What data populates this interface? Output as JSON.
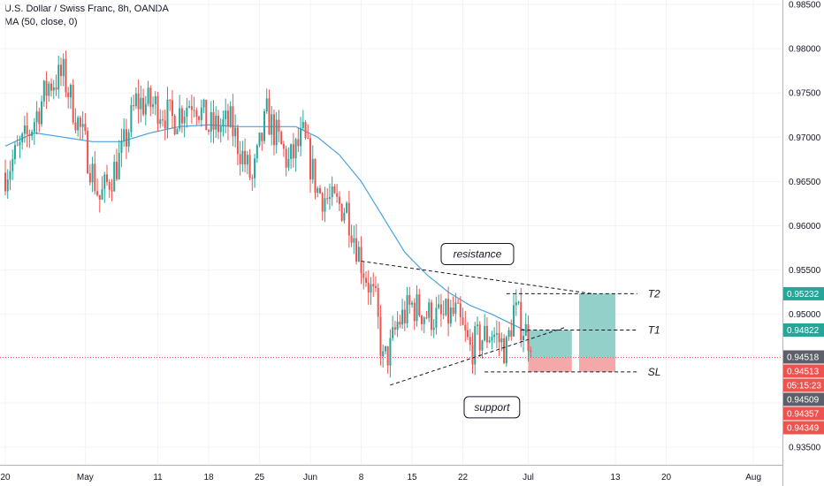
{
  "header": {
    "title": "U.S. Dollar / Swiss Franc, 8h, OANDA",
    "indicator": "MA (50, close, 0)"
  },
  "colors": {
    "up": "#26a69a",
    "down": "#ef5350",
    "ma": "#4aa3df",
    "profit_zone": "#7fc8bf",
    "loss_zone": "#f19a9a",
    "price_line": "#ef5350",
    "grid": "#f0f3fa"
  },
  "chart_data": {
    "type": "candlestick",
    "symbol": "U.S. Dollar / Swiss Franc",
    "timeframe": "8h",
    "source": "OANDA",
    "ylim": [
      0.933,
      0.9855
    ],
    "x_range": [
      "2020-04-20",
      "2020-08-05"
    ],
    "x_ticks": [
      {
        "label": "20",
        "date": "2020-04-20"
      },
      {
        "label": "May",
        "date": "2020-05-01"
      },
      {
        "label": "11",
        "date": "2020-05-11"
      },
      {
        "label": "18",
        "date": "2020-05-18"
      },
      {
        "label": "25",
        "date": "2020-05-25"
      },
      {
        "label": "Jun",
        "date": "2020-06-01"
      },
      {
        "label": "8",
        "date": "2020-06-08"
      },
      {
        "label": "15",
        "date": "2020-06-15"
      },
      {
        "label": "22",
        "date": "2020-06-22"
      },
      {
        "label": "Jul",
        "date": "2020-07-01"
      },
      {
        "label": "13",
        "date": "2020-07-13"
      },
      {
        "label": "20",
        "date": "2020-07-20"
      },
      {
        "label": "Aug",
        "date": "2020-08-01"
      }
    ],
    "y_ticks": [
      "0.93500",
      "0.94000",
      "0.94500",
      "0.95000",
      "0.95500",
      "0.96000",
      "0.96500",
      "0.97000",
      "0.97500",
      "0.98000",
      "0.98500"
    ],
    "y_tick_values": [
      0.935,
      0.94,
      0.945,
      0.95,
      0.955,
      0.96,
      0.965,
      0.97,
      0.975,
      0.98,
      0.985
    ],
    "close_anchors": [
      [
        "2020-04-20",
        0.966
      ],
      [
        "2020-04-23",
        0.97
      ],
      [
        "2020-04-26",
        0.976
      ],
      [
        "2020-04-28",
        0.977
      ],
      [
        "2020-05-01",
        0.969
      ],
      [
        "2020-05-03",
        0.963
      ],
      [
        "2020-05-06",
        0.968
      ],
      [
        "2020-05-08",
        0.974
      ],
      [
        "2020-05-11",
        0.9735
      ],
      [
        "2020-05-13",
        0.972
      ],
      [
        "2020-05-16",
        0.9745
      ],
      [
        "2020-05-18",
        0.971
      ],
      [
        "2020-05-21",
        0.9715
      ],
      [
        "2020-05-24",
        0.965
      ],
      [
        "2020-05-26",
        0.9725
      ],
      [
        "2020-05-29",
        0.967
      ],
      [
        "2020-05-31",
        0.97
      ],
      [
        "2020-06-02",
        0.964
      ],
      [
        "2020-06-04",
        0.9625
      ],
      [
        "2020-06-06",
        0.962
      ],
      [
        "2020-06-08",
        0.956
      ],
      [
        "2020-06-10",
        0.951
      ],
      [
        "2020-06-11",
        0.9445
      ],
      [
        "2020-06-12",
        0.946
      ],
      [
        "2020-06-13",
        0.949
      ],
      [
        "2020-06-15",
        0.951
      ],
      [
        "2020-06-17",
        0.95
      ],
      [
        "2020-06-19",
        0.9495
      ],
      [
        "2020-06-21",
        0.95
      ],
      [
        "2020-06-23",
        0.946
      ],
      [
        "2020-06-24",
        0.947
      ],
      [
        "2020-06-26",
        0.948
      ],
      [
        "2020-06-28",
        0.946
      ],
      [
        "2020-06-29",
        0.9505
      ],
      [
        "2020-06-30",
        0.949
      ],
      [
        "2020-07-01",
        0.9475
      ]
    ],
    "ma_anchors": [
      [
        "2020-04-20",
        0.969
      ],
      [
        "2020-04-24",
        0.9705
      ],
      [
        "2020-04-28",
        0.97
      ],
      [
        "2020-05-02",
        0.9695
      ],
      [
        "2020-05-06",
        0.9695
      ],
      [
        "2020-05-10",
        0.9705
      ],
      [
        "2020-05-14",
        0.9712
      ],
      [
        "2020-05-18",
        0.9714
      ],
      [
        "2020-05-22",
        0.9712
      ],
      [
        "2020-05-26",
        0.9712
      ],
      [
        "2020-05-30",
        0.9712
      ],
      [
        "2020-06-02",
        0.97
      ],
      [
        "2020-06-05",
        0.968
      ],
      [
        "2020-06-08",
        0.965
      ],
      [
        "2020-06-11",
        0.961
      ],
      [
        "2020-06-14",
        0.957
      ],
      [
        "2020-06-17",
        0.9545
      ],
      [
        "2020-06-20",
        0.9525
      ],
      [
        "2020-06-23",
        0.951
      ],
      [
        "2020-06-26",
        0.95
      ],
      [
        "2020-06-29",
        0.9488
      ],
      [
        "2020-07-01",
        0.948
      ]
    ],
    "current_price": 0.94513,
    "current_price_label": "0.94513",
    "countdown": "05:15:23",
    "price_badges": [
      {
        "label": "0.95232",
        "value": 0.95232,
        "color": "#26a69a"
      },
      {
        "label": "0.94822",
        "value": 0.94822,
        "color": "#26a69a"
      },
      {
        "label": "0.94518",
        "value": 0.94518,
        "color": "#5d606b"
      },
      {
        "label": "0.94513",
        "value": 0.94513,
        "color": "#ef5350"
      },
      {
        "label": "05:15:23",
        "value": null,
        "color": "#ef5350"
      },
      {
        "label": "0.94509",
        "value": 0.94509,
        "color": "#5d606b"
      },
      {
        "label": "0.94357",
        "value": 0.94357,
        "color": "#ef5350"
      },
      {
        "label": "0.94349",
        "value": 0.94349,
        "color": "#ef5350"
      }
    ],
    "trendlines": [
      {
        "name": "resistance",
        "from": [
          "2020-06-08",
          0.956
        ],
        "to": [
          "2020-07-10",
          0.9523
        ]
      },
      {
        "name": "support",
        "from": [
          "2020-06-12",
          0.942
        ],
        "to": [
          "2020-07-06",
          0.9485
        ]
      }
    ],
    "levels": [
      {
        "name": "T2",
        "value": 0.95232,
        "from": "2020-06-28",
        "to": "2020-07-16"
      },
      {
        "name": "T1",
        "value": 0.94822,
        "from": "2020-06-30",
        "to": "2020-07-16"
      },
      {
        "name": "SL",
        "value": 0.94349,
        "from": "2020-06-25",
        "to": "2020-07-16"
      }
    ],
    "positions": [
      {
        "entry": 0.94509,
        "target": 0.94822,
        "stop": 0.94349,
        "from": "2020-07-01",
        "to": "2020-07-07"
      },
      {
        "entry": 0.94509,
        "target": 0.95232,
        "stop": 0.94349,
        "from": "2020-07-08",
        "to": "2020-07-13"
      }
    ],
    "annotations": [
      {
        "text": "resistance",
        "date": "2020-06-24",
        "value": 0.9568
      },
      {
        "text": "support",
        "date": "2020-06-26",
        "value": 0.9395
      }
    ],
    "level_labels": [
      "T2",
      "T1",
      "SL"
    ]
  }
}
